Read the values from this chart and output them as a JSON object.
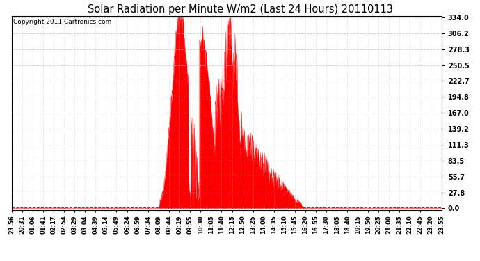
{
  "title": "Solar Radiation per Minute W/m2 (Last 24 Hours) 20110113",
  "copyright": "Copyright 2011 Cartronics.com",
  "bg_color": "#ffffff",
  "plot_bg_color": "#ffffff",
  "fill_color": "#ff0000",
  "dashed_line_color": "#ff0000",
  "grid_color": "#bbbbbb",
  "y_ticks": [
    0.0,
    27.8,
    55.7,
    83.5,
    111.3,
    139.2,
    167.0,
    194.8,
    222.7,
    250.5,
    278.3,
    306.2,
    334.0
  ],
  "y_max": 334.0,
  "y_min": 0.0,
  "x_labels": [
    "23:56",
    "20:31",
    "01:06",
    "01:41",
    "02:17",
    "02:54",
    "03:29",
    "03:04",
    "04:39",
    "05:14",
    "05:49",
    "06:24",
    "06:59",
    "07:34",
    "08:09",
    "08:44",
    "09:19",
    "09:55",
    "10:30",
    "11:05",
    "11:40",
    "12:15",
    "12:50",
    "13:25",
    "14:00",
    "14:35",
    "15:10",
    "15:45",
    "16:20",
    "16:55",
    "17:30",
    "18:05",
    "18:40",
    "19:15",
    "19:50",
    "20:25",
    "21:00",
    "21:35",
    "22:10",
    "22:45",
    "23:20",
    "23:55"
  ],
  "num_points": 1440
}
